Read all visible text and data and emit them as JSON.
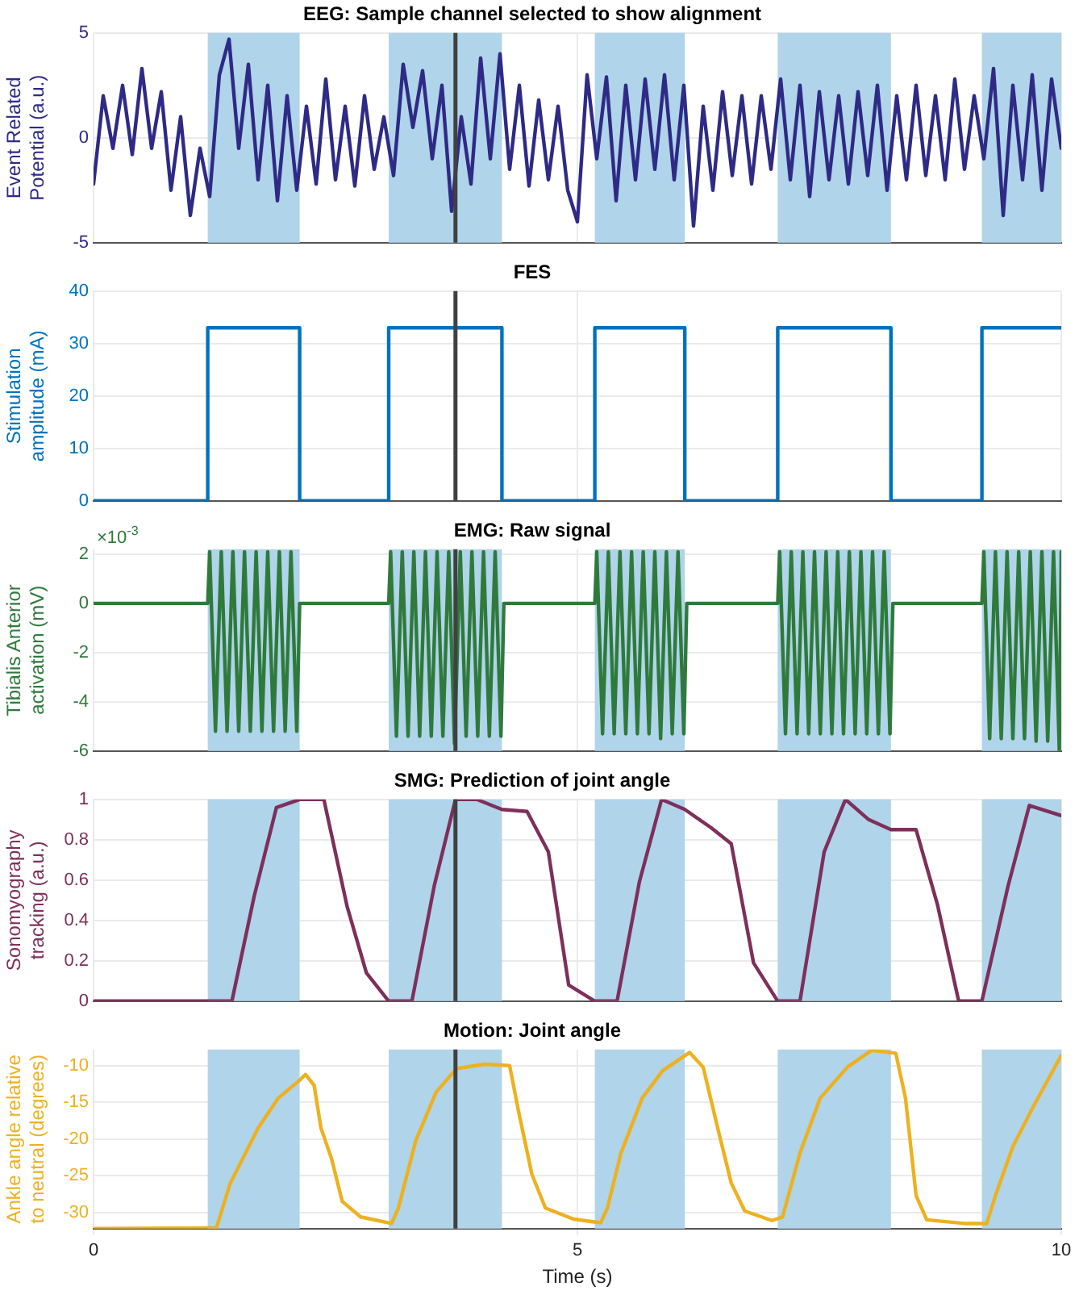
{
  "chart_data": [
    {
      "type": "line",
      "title": "EEG: Sample channel selected to show alignment",
      "ylabel": "Event Related Potential (a.u.)",
      "xlim": [
        0,
        10
      ],
      "xticks": [
        0,
        5,
        10
      ],
      "ylim": [
        -5,
        5
      ],
      "yticks": [
        -5,
        0,
        5
      ],
      "tick_labels": "y",
      "grid": true,
      "marker": "none",
      "line_style": "solid",
      "bands": [
        {
          "axis": "x",
          "from": 1.18,
          "to": 2.13,
          "color": "#b0d4ea"
        },
        {
          "axis": "x",
          "from": 3.05,
          "to": 4.22,
          "color": "#b0d4ea"
        },
        {
          "axis": "x",
          "from": 5.18,
          "to": 6.11,
          "color": "#b0d4ea"
        },
        {
          "axis": "x",
          "from": 7.07,
          "to": 8.24,
          "color": "#b0d4ea"
        },
        {
          "axis": "x",
          "from": 9.18,
          "to": 10,
          "color": "#b0d4ea"
        }
      ],
      "ref_lines": [
        {
          "axis": "x",
          "value": 3.74,
          "color": "#404040"
        }
      ],
      "series": [
        {
          "color": "#2e2a86",
          "x": [
            0,
            0.1,
            0.2,
            0.3,
            0.4,
            0.5,
            0.6,
            0.7,
            0.8,
            0.9,
            1,
            1.1,
            1.2,
            1.3,
            1.4,
            1.5,
            1.6,
            1.7,
            1.8,
            1.9,
            2,
            2.1,
            2.2,
            2.3,
            2.4,
            2.5,
            2.6,
            2.7,
            2.8,
            2.9,
            3,
            3.1,
            3.2,
            3.3,
            3.4,
            3.5,
            3.6,
            3.7,
            3.8,
            3.9,
            4,
            4.1,
            4.2,
            4.3,
            4.4,
            4.5,
            4.6,
            4.7,
            4.8,
            4.9,
            5,
            5.1,
            5.2,
            5.3,
            5.4,
            5.5,
            5.6,
            5.7,
            5.8,
            5.9,
            6,
            6.1,
            6.2,
            6.3,
            6.4,
            6.5,
            6.6,
            6.7,
            6.8,
            6.9,
            7,
            7.1,
            7.2,
            7.3,
            7.4,
            7.5,
            7.6,
            7.7,
            7.8,
            7.9,
            8,
            8.1,
            8.2,
            8.3,
            8.4,
            8.5,
            8.6,
            8.7,
            8.8,
            8.9,
            9,
            9.1,
            9.2,
            9.3,
            9.4,
            9.5,
            9.6,
            9.7,
            9.8,
            9.9,
            10
          ],
          "values": [
            -2.2,
            2,
            -0.5,
            2.5,
            -0.8,
            3.3,
            -0.5,
            2.2,
            -2.5,
            1,
            -3.7,
            -0.5,
            -2.8,
            3,
            4.7,
            -0.5,
            3.5,
            -2,
            2.5,
            -3,
            2,
            -2.5,
            1.5,
            -2.2,
            2.8,
            -2,
            1.5,
            -2.3,
            2,
            -1.5,
            1,
            -1.8,
            3.5,
            0.5,
            3.2,
            -1,
            2.5,
            -3.5,
            1,
            -2.2,
            3.8,
            -1,
            4,
            -1.5,
            2.5,
            -2.3,
            1.8,
            -2,
            1.5,
            -2.5,
            -4,
            3,
            -1,
            2.9,
            -3,
            2.5,
            -2,
            2.8,
            -1.5,
            3,
            -2,
            2.5,
            -4.2,
            1.5,
            -2.5,
            2.2,
            -1.8,
            2,
            -2.2,
            2,
            -1.5,
            2.8,
            -2,
            2.5,
            -2.8,
            2.2,
            -2,
            2,
            -2.2,
            2.2,
            -1.8,
            2.5,
            -2.5,
            2,
            -2,
            2.5,
            -1.8,
            2,
            -2,
            2.8,
            -1.5,
            2,
            -1,
            3.3,
            -3.7,
            2.5,
            -2,
            3,
            -2.5,
            2.8,
            -0.5
          ]
        }
      ]
    },
    {
      "type": "line",
      "title": "FES",
      "ylabel": "Stimulation amplitude (mA)",
      "xlim": [
        0,
        10
      ],
      "xticks": [
        0,
        5,
        10
      ],
      "ylim": [
        0,
        40
      ],
      "yticks": [
        0,
        10,
        20,
        30,
        40
      ],
      "tick_labels": "y",
      "grid": true,
      "marker": "none",
      "line_style": "solid",
      "ref_lines": [
        {
          "axis": "x",
          "value": 3.74,
          "color": "#404040"
        }
      ],
      "series": [
        {
          "color": "#0072bd",
          "x": [
            0,
            1.18,
            1.18,
            2.13,
            2.13,
            3.05,
            3.05,
            4.22,
            4.22,
            5.18,
            5.18,
            6.11,
            6.11,
            7.07,
            7.07,
            8.24,
            8.24,
            9.18,
            9.18,
            10
          ],
          "values": [
            0,
            0,
            33,
            33,
            0,
            0,
            33,
            33,
            0,
            0,
            33,
            33,
            0,
            0,
            33,
            33,
            0,
            0,
            33,
            33
          ]
        }
      ]
    },
    {
      "type": "line",
      "title": "EMG: Raw signal",
      "ylabel": "Tibialis Anterior activation (mV)",
      "annotations": [
        "×10$^{-3}$"
      ],
      "xlim": [
        0,
        10
      ],
      "xticks": [
        0,
        5,
        10
      ],
      "ylim": [
        -6,
        2.2
      ],
      "yticks": [
        -6,
        -4,
        -2,
        0,
        2
      ],
      "tick_labels": "y",
      "grid": true,
      "marker": "none",
      "line_style": "solid",
      "bands": [
        {
          "axis": "x",
          "from": 1.18,
          "to": 2.13,
          "color": "#b0d4ea"
        },
        {
          "axis": "x",
          "from": 3.05,
          "to": 4.22,
          "color": "#b0d4ea"
        },
        {
          "axis": "x",
          "from": 5.18,
          "to": 6.11,
          "color": "#b0d4ea"
        },
        {
          "axis": "x",
          "from": 7.07,
          "to": 8.24,
          "color": "#b0d4ea"
        },
        {
          "axis": "x",
          "from": 9.18,
          "to": 10,
          "color": "#b0d4ea"
        }
      ],
      "ref_lines": [
        {
          "axis": "x",
          "value": 3.74,
          "color": "#404040"
        }
      ],
      "series": [
        {
          "color": "#2f7a3b",
          "x": [
            0,
            1.18,
            1.2,
            1.26,
            1.32,
            1.38,
            1.44,
            1.5,
            1.56,
            1.62,
            1.68,
            1.74,
            1.8,
            1.86,
            1.92,
            1.98,
            2.04,
            2.1,
            2.13,
            3.05,
            3.07,
            3.13,
            3.19,
            3.25,
            3.31,
            3.37,
            3.43,
            3.49,
            3.55,
            3.61,
            3.67,
            3.73,
            3.79,
            3.85,
            3.91,
            3.97,
            4.03,
            4.09,
            4.15,
            4.21,
            4.24,
            5.18,
            5.2,
            5.26,
            5.32,
            5.38,
            5.44,
            5.5,
            5.56,
            5.62,
            5.68,
            5.74,
            5.8,
            5.86,
            5.92,
            5.98,
            6.04,
            6.1,
            6.13,
            7.07,
            7.09,
            7.15,
            7.21,
            7.27,
            7.33,
            7.39,
            7.45,
            7.51,
            7.57,
            7.63,
            7.69,
            7.75,
            7.81,
            7.87,
            7.93,
            7.99,
            8.05,
            8.11,
            8.17,
            8.23,
            8.26,
            9.18,
            9.2,
            9.26,
            9.32,
            9.38,
            9.44,
            9.5,
            9.56,
            9.62,
            9.68,
            9.74,
            9.8,
            9.86,
            9.92,
            9.98,
            10
          ],
          "values": [
            0,
            0,
            2.1,
            -5.2,
            2.1,
            -5.2,
            2.1,
            -5.2,
            2.1,
            -5.2,
            2.1,
            -5.2,
            2.1,
            -5.2,
            2.1,
            -5.2,
            2.1,
            -5.2,
            0,
            0,
            2.1,
            -5.4,
            2.1,
            -5.4,
            2.1,
            -5.4,
            2.1,
            -5.4,
            2.1,
            -5.4,
            2.1,
            -5.7,
            2.1,
            -5.4,
            2.1,
            -5.4,
            2.1,
            -5.4,
            2.1,
            -5.4,
            0,
            0,
            2.1,
            -5.3,
            2.1,
            -5.3,
            2.1,
            -5.3,
            2.1,
            -5.3,
            2.1,
            -5.3,
            2.1,
            -5.5,
            2.1,
            -5.3,
            2.1,
            -5.3,
            0,
            0,
            2.1,
            -5.3,
            2.1,
            -5.3,
            2.1,
            -5.3,
            2.1,
            -5.3,
            2.1,
            -5.3,
            2.1,
            -5.3,
            2.1,
            -5.3,
            2.1,
            -5.3,
            2.1,
            -5.3,
            2.1,
            -5.3,
            0,
            0,
            2.1,
            -5.5,
            2.1,
            -5.5,
            2.1,
            -5.5,
            2.1,
            -5.5,
            2.1,
            -5.6,
            2.1,
            -5.6,
            2.1,
            -6,
            2.1
          ]
        }
      ]
    },
    {
      "type": "line",
      "title": "SMG: Prediction of joint angle",
      "ylabel": "Sonomyography tracking (a.u.)",
      "xlim": [
        0,
        10
      ],
      "xticks": [
        0,
        5,
        10
      ],
      "ylim": [
        0,
        1
      ],
      "yticks": [
        0,
        0.2,
        0.4,
        0.6,
        0.8,
        1
      ],
      "tick_labels": "y",
      "grid": true,
      "marker": "none",
      "line_style": "solid",
      "bands": [
        {
          "axis": "x",
          "from": 1.18,
          "to": 2.13,
          "color": "#b0d4ea"
        },
        {
          "axis": "x",
          "from": 3.05,
          "to": 4.22,
          "color": "#b0d4ea"
        },
        {
          "axis": "x",
          "from": 5.18,
          "to": 6.11,
          "color": "#b0d4ea"
        },
        {
          "axis": "x",
          "from": 7.07,
          "to": 8.24,
          "color": "#b0d4ea"
        },
        {
          "axis": "x",
          "from": 9.18,
          "to": 10,
          "color": "#b0d4ea"
        }
      ],
      "ref_lines": [
        {
          "axis": "x",
          "value": 3.74,
          "color": "#404040"
        }
      ],
      "series": [
        {
          "color": "#7e2f5a",
          "x": [
            0,
            1.43,
            1.66,
            1.89,
            2.13,
            2.38,
            2.62,
            2.82,
            3.05,
            3.29,
            3.52,
            3.74,
            3.96,
            4.22,
            4.48,
            4.7,
            4.91,
            5.18,
            5.41,
            5.64,
            5.87,
            6.11,
            6.38,
            6.59,
            6.82,
            7.07,
            7.3,
            7.55,
            7.77,
            8.01,
            8.24,
            8.5,
            8.72,
            8.94,
            9.18,
            9.45,
            9.67,
            10
          ],
          "values": [
            0,
            0,
            0.52,
            0.96,
            1,
            1,
            0.47,
            0.14,
            0,
            0,
            0.57,
            1,
            1,
            0.95,
            0.94,
            0.74,
            0.08,
            0,
            0,
            0.59,
            1,
            0.95,
            0.86,
            0.78,
            0.19,
            0,
            0,
            0.74,
            1,
            0.9,
            0.85,
            0.85,
            0.48,
            0,
            0,
            0.57,
            0.97,
            0.92
          ]
        }
      ]
    },
    {
      "type": "line",
      "title": "Motion: Joint angle",
      "xlabel": "Time (s)",
      "ylabel": "Ankle angle relative to neutral (degrees)",
      "xlim": [
        0,
        10
      ],
      "xticks": [
        0,
        5,
        10
      ],
      "ylim": [
        -32.2,
        -7.8
      ],
      "yticks": [
        -30,
        -25,
        -20,
        -15,
        -10
      ],
      "grid": true,
      "marker": "none",
      "line_style": "solid",
      "bands": [
        {
          "axis": "x",
          "from": 1.18,
          "to": 2.13,
          "color": "#b0d4ea"
        },
        {
          "axis": "x",
          "from": 3.05,
          "to": 4.22,
          "color": "#b0d4ea"
        },
        {
          "axis": "x",
          "from": 5.18,
          "to": 6.11,
          "color": "#b0d4ea"
        },
        {
          "axis": "x",
          "from": 7.07,
          "to": 8.24,
          "color": "#b0d4ea"
        },
        {
          "axis": "x",
          "from": 9.18,
          "to": 10,
          "color": "#b0d4ea"
        }
      ],
      "ref_lines": [
        {
          "axis": "x",
          "value": 3.74,
          "color": "#404040"
        }
      ],
      "series": [
        {
          "color": "#edb120",
          "x": [
            0,
            1.27,
            1.41,
            1.7,
            1.91,
            2.12,
            2.19,
            2.28,
            2.35,
            2.46,
            2.57,
            2.76,
            3.08,
            3.15,
            3.33,
            3.54,
            3.75,
            4.04,
            4.3,
            4.39,
            4.53,
            4.67,
            4.96,
            5.24,
            5.31,
            5.45,
            5.67,
            5.88,
            6.16,
            6.3,
            6.45,
            6.59,
            6.73,
            7.01,
            7.12,
            7.3,
            7.51,
            7.79,
            8.04,
            8.29,
            8.39,
            8.5,
            8.61,
            9,
            9.23,
            9.32,
            9.5,
            9.71,
            10
          ],
          "values": [
            -32.2,
            -32.1,
            -26.1,
            -18.5,
            -14.4,
            -12.1,
            -11.2,
            -12.7,
            -18.5,
            -22.7,
            -28.5,
            -30.6,
            -31.5,
            -29.4,
            -20.2,
            -13.6,
            -10.4,
            -9.8,
            -10,
            -16.1,
            -24.8,
            -29.4,
            -30.9,
            -31.4,
            -29.4,
            -21.9,
            -14.4,
            -10.7,
            -8.2,
            -10.2,
            -18.5,
            -26,
            -29.8,
            -31.1,
            -30.6,
            -21.9,
            -14.4,
            -10.2,
            -7.9,
            -8.3,
            -14.4,
            -27.7,
            -31,
            -31.5,
            -31.5,
            -27.7,
            -21,
            -15.6,
            -8.6
          ]
        }
      ]
    }
  ]
}
